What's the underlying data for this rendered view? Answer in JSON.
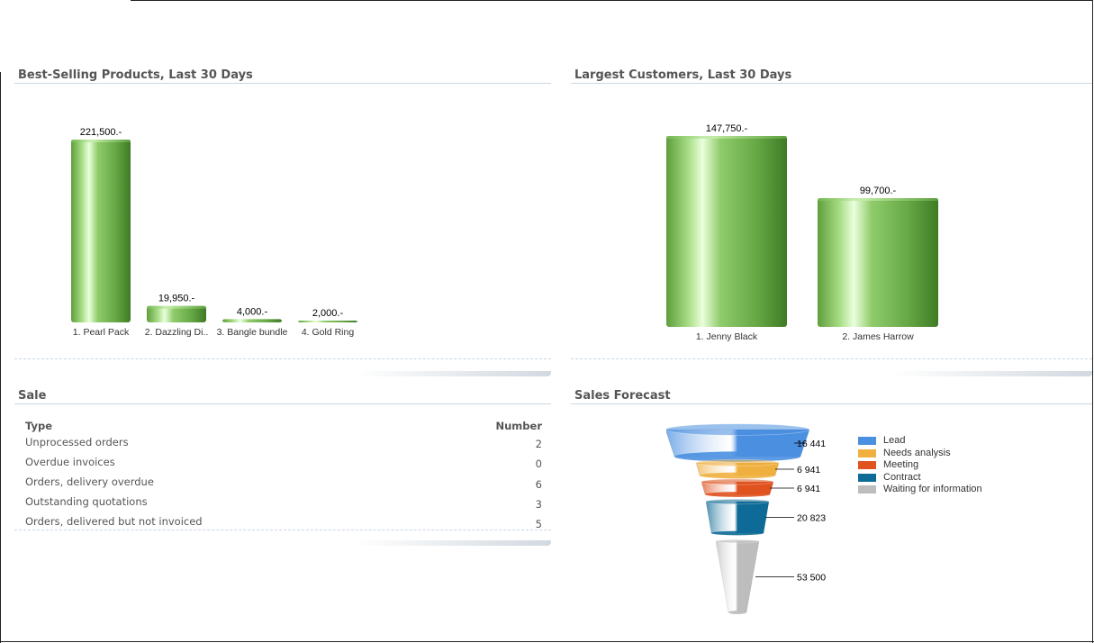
{
  "panels": {
    "best_selling": {
      "title": "Best-Selling Products, Last 30 Days",
      "chart_data": {
        "type": "bar",
        "title": "Best-Selling Products, Last 30 Days",
        "categories": [
          "1. Pearl Pack",
          "2. Dazzling Di..",
          "3. Bangle bundle",
          "4. Gold Ring"
        ],
        "values": [
          221500,
          19950,
          4000,
          2000
        ],
        "value_labels": [
          "221,500.-",
          "19,950.-",
          "4,000.-",
          "2,000.-"
        ],
        "bar_color": "#7cc05a",
        "grid": false
      }
    },
    "largest_customers": {
      "title": "Largest Customers, Last 30 Days",
      "chart_data": {
        "type": "bar",
        "title": "Largest Customers, Last 30 Days",
        "categories": [
          "1. Jenny Black",
          "2. James Harrow"
        ],
        "values": [
          147750,
          99700
        ],
        "value_labels": [
          "147,750.-",
          "99,700.-"
        ],
        "bar_color": "#7cc05a",
        "grid": false
      }
    },
    "sale": {
      "title": "Sale",
      "columns": [
        "Type",
        "Number"
      ],
      "rows": [
        {
          "type": "Unprocessed orders",
          "number": "2"
        },
        {
          "type": "Overdue invoices",
          "number": "0"
        },
        {
          "type": "Orders, delivery overdue",
          "number": "6"
        },
        {
          "type": "Outstanding quotations",
          "number": "3"
        },
        {
          "type": "Orders, delivered but not invoiced",
          "number": "5"
        }
      ]
    },
    "sales_forecast": {
      "title": "Sales Forecast",
      "chart_data": {
        "type": "funnel",
        "stages": [
          "Lead",
          "Needs analysis",
          "Meeting",
          "Contract",
          "Waiting for information"
        ],
        "values": [
          16441,
          6941,
          6941,
          20823,
          53500
        ],
        "value_labels": [
          "16 441",
          "6 941",
          "6 941",
          "20 823",
          "53 500"
        ],
        "colors": [
          "#4a8fe0",
          "#f0b040",
          "#e0521e",
          "#0e6a96",
          "#bdbdbd"
        ],
        "legend_position": "right"
      }
    }
  }
}
